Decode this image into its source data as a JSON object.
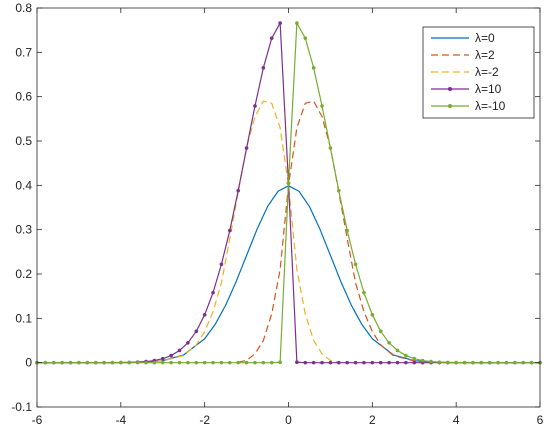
{
  "chart_data": {
    "type": "line",
    "title": "",
    "xlabel": "",
    "ylabel": "",
    "xlim": [
      -6,
      6
    ],
    "ylim": [
      -0.1,
      0.8
    ],
    "xticks": [
      -6,
      -4,
      -2,
      0,
      2,
      4,
      6
    ],
    "yticks": [
      -0.1,
      0,
      0.1,
      0.2,
      0.3,
      0.4,
      0.5,
      0.6,
      0.7,
      0.8
    ],
    "grid": false,
    "legend_position": "top-right",
    "series": [
      {
        "name": "λ=0",
        "color": "#0072BD",
        "dash": "solid",
        "marker": "none",
        "x": [
          -6,
          -5.5,
          -5,
          -4.5,
          -4,
          -3.5,
          -3,
          -2.5,
          -2,
          -1.75,
          -1.5,
          -1.25,
          -1,
          -0.75,
          -0.5,
          -0.25,
          0,
          0.25,
          0.5,
          0.75,
          1,
          1.25,
          1.5,
          1.75,
          2,
          2.5,
          3,
          3.5,
          4,
          4.5,
          5,
          5.5,
          6
        ],
        "y": [
          0,
          0,
          0,
          0,
          0.0001,
          0.0009,
          0.0044,
          0.0175,
          0.054,
          0.0863,
          0.1295,
          0.1826,
          0.242,
          0.3011,
          0.3521,
          0.3867,
          0.3989,
          0.3867,
          0.3521,
          0.3011,
          0.242,
          0.1826,
          0.1295,
          0.0863,
          0.054,
          0.0175,
          0.0044,
          0.0009,
          0.0001,
          0,
          0,
          0,
          0
        ]
      },
      {
        "name": "λ=2",
        "color": "#D95319",
        "dash": "dashed",
        "marker": "none",
        "x": [
          -1.2,
          -1.0,
          -0.8,
          -0.6,
          -0.4,
          -0.2,
          0,
          0.2,
          0.4,
          0.6,
          0.8,
          1.0,
          1.2,
          1.4,
          1.6,
          1.8,
          2.0,
          2.2,
          2.5,
          3.0,
          3.5,
          4.0,
          4.5
        ],
        "y": [
          0.001,
          0.005,
          0.02,
          0.05,
          0.11,
          0.21,
          0.4,
          0.53,
          0.585,
          0.59,
          0.555,
          0.485,
          0.385,
          0.28,
          0.18,
          0.115,
          0.07,
          0.04,
          0.016,
          0.004,
          0.0008,
          0.0001,
          0
        ]
      },
      {
        "name": "λ=-2",
        "color": "#EDB120",
        "dash": "dashed",
        "marker": "none",
        "x": [
          -4.5,
          -4.0,
          -3.5,
          -3.0,
          -2.5,
          -2.2,
          -2.0,
          -1.8,
          -1.6,
          -1.4,
          -1.2,
          -1.0,
          -0.8,
          -0.6,
          -0.4,
          -0.2,
          0,
          0.2,
          0.4,
          0.6,
          0.8,
          1.0,
          1.2
        ],
        "y": [
          0,
          0.0001,
          0.0008,
          0.004,
          0.016,
          0.04,
          0.07,
          0.115,
          0.18,
          0.28,
          0.385,
          0.485,
          0.555,
          0.59,
          0.585,
          0.53,
          0.4,
          0.21,
          0.11,
          0.05,
          0.02,
          0.005,
          0.001
        ]
      },
      {
        "name": "λ=10",
        "color": "#7E2F8E",
        "dash": "solid",
        "marker": "dot",
        "x": [
          -6,
          -5.8,
          -5.6,
          -5.4,
          -5.2,
          -5,
          -4.8,
          -4.6,
          -4.4,
          -4.2,
          -4,
          -3.8,
          -3.6,
          -3.4,
          -3.2,
          -3,
          -2.8,
          -2.6,
          -2.4,
          -2.2,
          -2,
          -1.8,
          -1.6,
          -1.4,
          -1.2,
          -1,
          -0.8,
          -0.6,
          -0.4,
          -0.2,
          0,
          0.2,
          0.4,
          0.6,
          0.8,
          1,
          1.2,
          1.4,
          1.6,
          1.8,
          2,
          2.2,
          2.4,
          2.6,
          2.8,
          3,
          3.2,
          3.4,
          3.6,
          3.8,
          4,
          4.2,
          4.4,
          4.6,
          4.8,
          5,
          5.2,
          5.4,
          5.6,
          5.8,
          6
        ],
        "y": [
          0,
          0,
          0,
          0,
          0,
          0,
          0,
          0,
          0,
          0,
          0.0003,
          0.0005,
          0.0012,
          0.0024,
          0.0048,
          0.009,
          0.016,
          0.0275,
          0.0448,
          0.0707,
          0.108,
          0.158,
          0.222,
          0.298,
          0.388,
          0.484,
          0.579,
          0.665,
          0.732,
          0.766,
          0.405,
          0.001,
          0,
          0,
          0,
          0,
          0,
          0,
          0,
          0,
          0,
          0,
          0,
          0,
          0,
          0,
          0,
          0,
          0,
          0,
          0,
          0,
          0,
          0,
          0,
          0,
          0,
          0,
          0,
          0,
          0
        ]
      },
      {
        "name": "λ=-10",
        "color": "#77AC30",
        "dash": "solid",
        "marker": "dot",
        "x": [
          -6,
          -5.8,
          -5.6,
          -5.4,
          -5.2,
          -5,
          -4.8,
          -4.6,
          -4.4,
          -4.2,
          -4,
          -3.8,
          -3.6,
          -3.4,
          -3.2,
          -3,
          -2.8,
          -2.6,
          -2.4,
          -2.2,
          -2,
          -1.8,
          -1.6,
          -1.4,
          -1.2,
          -1,
          -0.8,
          -0.6,
          -0.4,
          -0.2,
          0,
          0.2,
          0.4,
          0.6,
          0.8,
          1,
          1.2,
          1.4,
          1.6,
          1.8,
          2,
          2.2,
          2.4,
          2.6,
          2.8,
          3,
          3.2,
          3.4,
          3.6,
          3.8,
          4,
          4.2,
          4.4,
          4.6,
          4.8,
          5,
          5.2,
          5.4,
          5.6,
          5.8,
          6
        ],
        "y": [
          0,
          0,
          0,
          0,
          0,
          0,
          0,
          0,
          0,
          0,
          0,
          0,
          0,
          0,
          0,
          0,
          0,
          0,
          0,
          0,
          0,
          0,
          0,
          0,
          0,
          0,
          0,
          0,
          0,
          0.001,
          0.405,
          0.766,
          0.732,
          0.665,
          0.579,
          0.484,
          0.388,
          0.298,
          0.222,
          0.158,
          0.108,
          0.0707,
          0.0448,
          0.0275,
          0.016,
          0.009,
          0.0048,
          0.0024,
          0.0012,
          0.0005,
          0.0003,
          0,
          0,
          0,
          0,
          0,
          0,
          0,
          0,
          0,
          0
        ]
      }
    ]
  }
}
